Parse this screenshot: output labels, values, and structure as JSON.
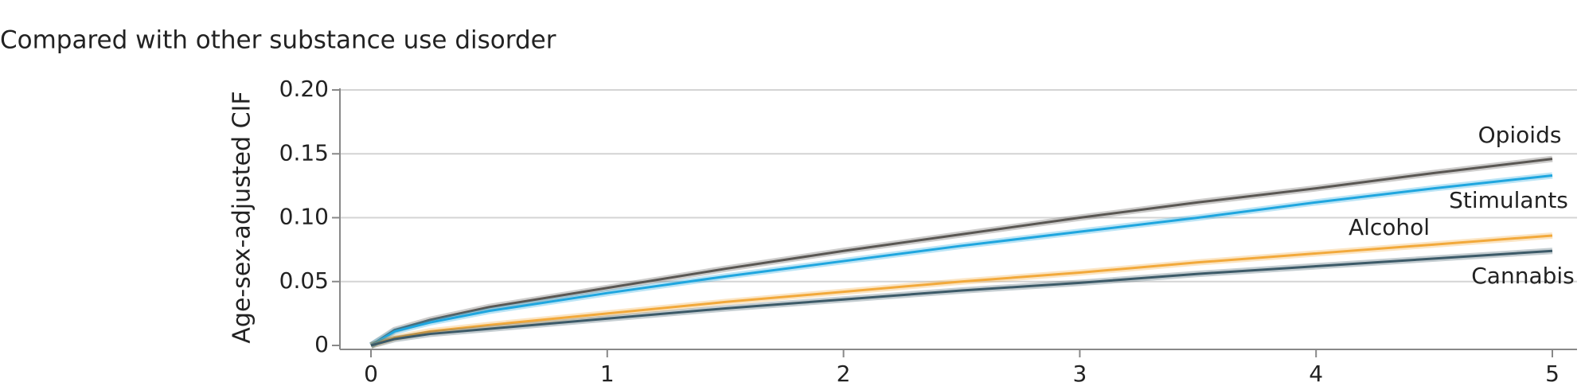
{
  "chart_data": {
    "type": "line",
    "title": "Compared with other substance use disorder",
    "y_label": "Age-sex-adjusted CIF",
    "x": [
      0,
      0.1,
      0.25,
      0.5,
      1,
      1.5,
      2,
      2.5,
      3,
      3.5,
      4,
      4.5,
      5
    ],
    "series": [
      {
        "name": "Opioids",
        "color": "#5a5753",
        "values": [
          0,
          0.012,
          0.02,
          0.03,
          0.045,
          0.06,
          0.074,
          0.087,
          0.1,
          0.112,
          0.123,
          0.135,
          0.146
        ]
      },
      {
        "name": "Stimulants",
        "color": "#1fa6df",
        "values": [
          0,
          0.011,
          0.018,
          0.027,
          0.041,
          0.054,
          0.066,
          0.078,
          0.089,
          0.1,
          0.112,
          0.123,
          0.133
        ]
      },
      {
        "name": "Alcohol",
        "color": "#f2a93b",
        "values": [
          0,
          0.006,
          0.011,
          0.016,
          0.025,
          0.034,
          0.042,
          0.05,
          0.057,
          0.065,
          0.072,
          0.079,
          0.086
        ]
      },
      {
        "name": "Cannabis",
        "color": "#3c5a68",
        "values": [
          0,
          0.005,
          0.009,
          0.013,
          0.021,
          0.029,
          0.036,
          0.043,
          0.049,
          0.056,
          0.062,
          0.068,
          0.074
        ]
      }
    ],
    "xlim": [
      0,
      5
    ],
    "xticks": [
      0,
      1,
      2,
      3,
      4,
      5
    ],
    "ylim": [
      0,
      0.2
    ],
    "yticks": [
      0,
      {
        "value": 0.05,
        "label": "0.05"
      },
      {
        "value": 0.1,
        "label": "0.10"
      },
      {
        "value": 0.15,
        "label": "0.15"
      },
      {
        "value": 0.2,
        "label": "0.20"
      }
    ],
    "grid": true
  }
}
